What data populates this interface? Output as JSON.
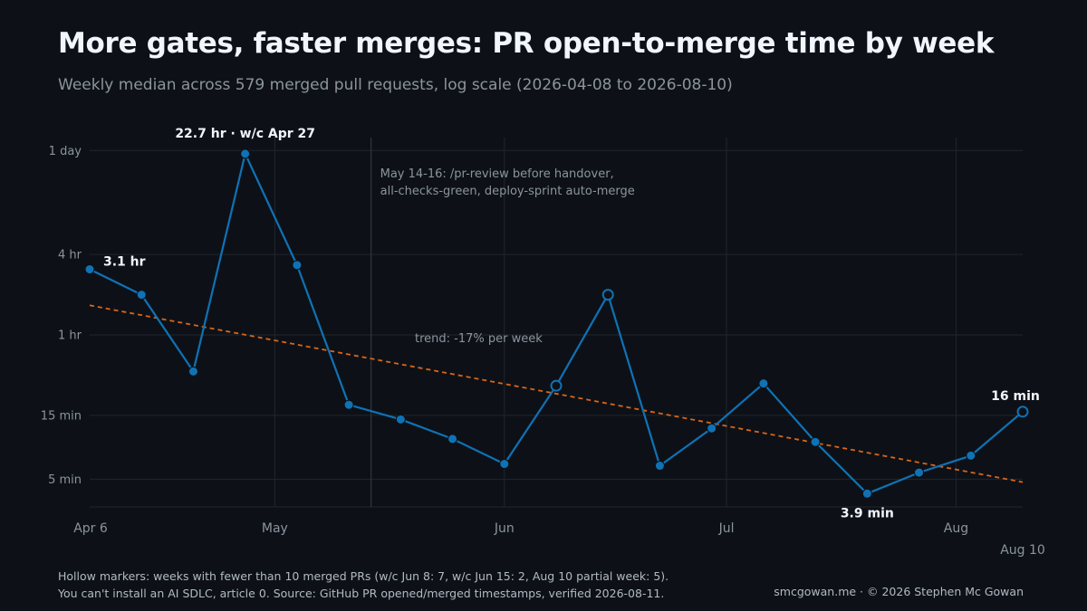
{
  "title": "More gates, faster merges: PR open-to-merge time by week",
  "subtitle": "Weekly median across 579 merged pull requests, log scale (2026-04-08 to 2026-08-10)",
  "footer": {
    "line1": "Hollow markers: weeks with fewer than 10 merged PRs (w/c Jun 8: 7, w/c Jun 15: 2, Aug 10 partial week: 5).",
    "line2": "You can't install an AI SDLC, article 0. Source: GitHub PR opened/merged timestamps, verified 2026-08-11.",
    "credit": "smcgowan.me · © 2026 Stephen Mc Gowan"
  },
  "colors": {
    "series": "#0f72b5",
    "trend": "#d9651a",
    "background": "#0d1117",
    "grid": "#21262d"
  },
  "chart_data": {
    "type": "line",
    "y_scale": "log",
    "y_unit": "minutes",
    "x_range": [
      "2026-04-06",
      "2026-08-10"
    ],
    "y_range_minutes": [
      3.1,
      1800
    ],
    "y_ticks": [
      {
        "value": 1440,
        "label": "1 day"
      },
      {
        "value": 240,
        "label": "4 hr"
      },
      {
        "value": 60,
        "label": "1 hr"
      },
      {
        "value": 15,
        "label": "15 min"
      },
      {
        "value": 5,
        "label": "5 min"
      }
    ],
    "x_ticks": [
      {
        "date": "2026-04-06",
        "label": "Apr 6"
      },
      {
        "date": "2026-05-01",
        "label": "May"
      },
      {
        "date": "2026-06-01",
        "label": "Jun"
      },
      {
        "date": "2026-07-01",
        "label": "Jul"
      },
      {
        "date": "2026-08-01",
        "label": "Aug"
      },
      {
        "date": "2026-08-10",
        "label": "Aug 10"
      }
    ],
    "series": [
      {
        "points": [
          {
            "week": "2026-04-06",
            "minutes": 186,
            "hollow": false
          },
          {
            "week": "2026-04-13",
            "minutes": 120,
            "hollow": false
          },
          {
            "week": "2026-04-20",
            "minutes": 32,
            "hollow": false
          },
          {
            "week": "2026-04-27",
            "minutes": 1362,
            "hollow": false
          },
          {
            "week": "2026-05-04",
            "minutes": 200,
            "hollow": false
          },
          {
            "week": "2026-05-11",
            "minutes": 18,
            "hollow": false
          },
          {
            "week": "2026-05-18",
            "minutes": 14,
            "hollow": false
          },
          {
            "week": "2026-05-25",
            "minutes": 10,
            "hollow": false
          },
          {
            "week": "2026-06-01",
            "minutes": 6.5,
            "hollow": false
          },
          {
            "week": "2026-06-08",
            "minutes": 25,
            "hollow": true
          },
          {
            "week": "2026-06-15",
            "minutes": 120,
            "hollow": true
          },
          {
            "week": "2026-06-22",
            "minutes": 6.3,
            "hollow": false
          },
          {
            "week": "2026-06-29",
            "minutes": 12,
            "hollow": false
          },
          {
            "week": "2026-07-06",
            "minutes": 26,
            "hollow": false
          },
          {
            "week": "2026-07-13",
            "minutes": 9.5,
            "hollow": false
          },
          {
            "week": "2026-07-20",
            "minutes": 3.9,
            "hollow": false
          },
          {
            "week": "2026-07-27",
            "minutes": 5.6,
            "hollow": false
          },
          {
            "week": "2026-08-03",
            "minutes": 7.5,
            "hollow": false
          },
          {
            "week": "2026-08-10",
            "minutes": 16,
            "hollow": true
          }
        ]
      }
    ],
    "trend": {
      "label": "trend: -17% per week",
      "start": {
        "week": "2026-04-06",
        "minutes": 100
      },
      "end": {
        "week": "2026-08-10",
        "minutes": 4.75
      }
    },
    "annotations": {
      "event_date": "2026-05-14",
      "event_line1": "May 14-16: /pr-review before handover,",
      "event_line2": "all-checks-green, deploy-sprint auto-merge"
    },
    "callouts": [
      {
        "week": "2026-04-06",
        "text": "3.1 hr",
        "anchor": "right"
      },
      {
        "week": "2026-04-27",
        "text": "22.7 hr · w/c Apr 27",
        "anchor": "above"
      },
      {
        "week": "2026-07-20",
        "text": "3.9 min",
        "anchor": "below"
      },
      {
        "week": "2026-08-10",
        "text": "16 min",
        "anchor": "above-left"
      }
    ],
    "grid": true
  }
}
